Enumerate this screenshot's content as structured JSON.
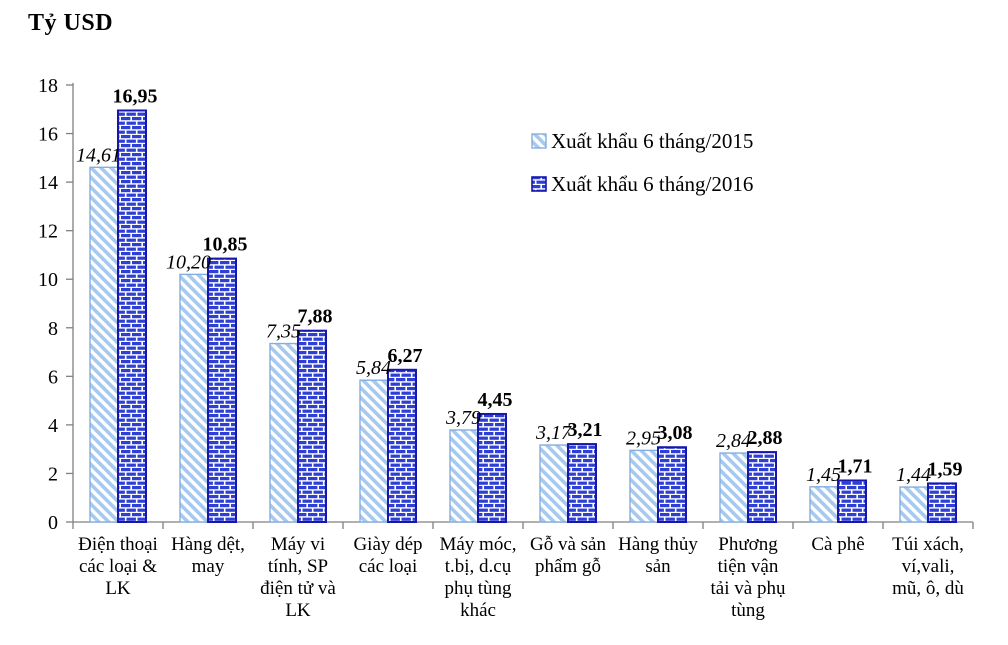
{
  "chart_data": {
    "type": "bar",
    "title": "Tỷ USD",
    "ylabel": "Tỷ USD",
    "xlabel": "",
    "categories": [
      "Điện thoại\ncác loại &\nLK",
      "Hàng dệt,\nmay",
      "Máy vi\ntính, SP\nđiện tử và\nLK",
      "Giày dép\ncác loại",
      "Máy móc,\nt.bị, d.cụ\nphụ tùng\nkhác",
      "Gỗ và sản\nphẩm gỗ",
      "Hàng thủy\nsản",
      "Phương\ntiện vận\ntải và phụ\ntùng",
      "Cà phê",
      "Túi xách,\nví,vali,\nmũ, ô, dù"
    ],
    "series": [
      {
        "name": "Xuất khẩu 6 tháng/2015",
        "pattern": "diagonal-hatch",
        "fill": "#A6C9EF",
        "border": "#84ADE0",
        "label_style": "italic",
        "values": [
          14.61,
          10.2,
          7.35,
          5.84,
          3.79,
          3.17,
          2.95,
          2.84,
          1.45,
          1.44
        ],
        "labels": [
          "14,61",
          "10,20",
          "7,35",
          "5,84",
          "3,79",
          "3,17",
          "2,95",
          "2,84",
          "1,45",
          "1,44"
        ]
      },
      {
        "name": "Xuất khẩu 6 tháng/2016",
        "pattern": "brick",
        "fill": "#2E3FD4",
        "border": "#1717AE",
        "label_style": "bold",
        "values": [
          16.95,
          10.85,
          7.88,
          6.27,
          4.45,
          3.21,
          3.08,
          2.88,
          1.71,
          1.59
        ],
        "labels": [
          "16,95",
          "10,85",
          "7,88",
          "6,27",
          "4,45",
          "3,21",
          "3,08",
          "2,88",
          "1,71",
          "1,59"
        ]
      }
    ],
    "ylim": [
      0,
      18
    ],
    "yticks": [
      0,
      2,
      4,
      6,
      8,
      10,
      12,
      14,
      16,
      18
    ],
    "grid": false,
    "axis_color": "#808080",
    "legend_position": "upper-right"
  }
}
